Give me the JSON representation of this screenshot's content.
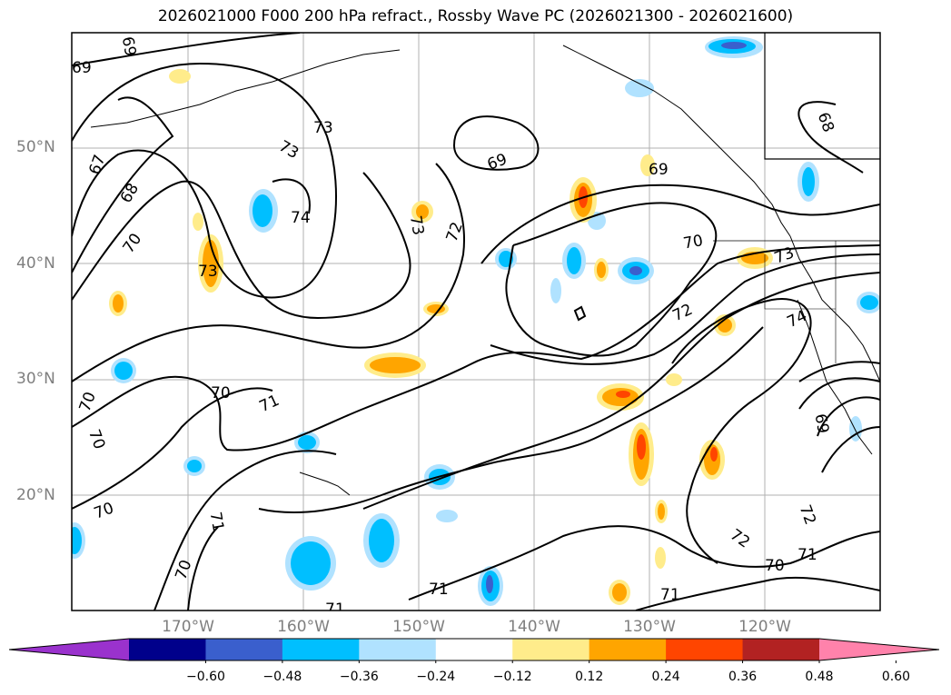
{
  "title": "2026021000 F000 200 hPa refract., Rossby Wave PC (2026021300 - 2026021600)",
  "lat_labels": [
    "50°N",
    "40°N",
    "30°N",
    "20°N"
  ],
  "lon_labels": [
    "170°W",
    "160°W",
    "150°W",
    "140°W",
    "130°W",
    "120°W"
  ],
  "contour_labels": [
    "69",
    "69",
    "67",
    "68",
    "70",
    "73",
    "73",
    "74",
    "73",
    "72",
    "69",
    "69",
    "70",
    "73",
    "72",
    "74",
    "70",
    "70",
    "71",
    "70",
    "70",
    "70",
    "71",
    "71",
    "72",
    "72",
    "70",
    "71",
    "71",
    "68",
    "69",
    "71",
    "73"
  ],
  "colorbar": {
    "ticks": [
      "−0.60",
      "−0.48",
      "−0.36",
      "−0.24",
      "−0.12",
      "0.12",
      "0.24",
      "0.36",
      "0.48",
      "0.60"
    ],
    "colors": [
      "#9a32cd",
      "#00008b",
      "#3a5fcd",
      "#00bfff",
      "#b0e2ff",
      "#ffffff",
      "#ffec8b",
      "#ffa500",
      "#ff4500",
      "#b22222",
      "#ff82ab"
    ]
  }
}
